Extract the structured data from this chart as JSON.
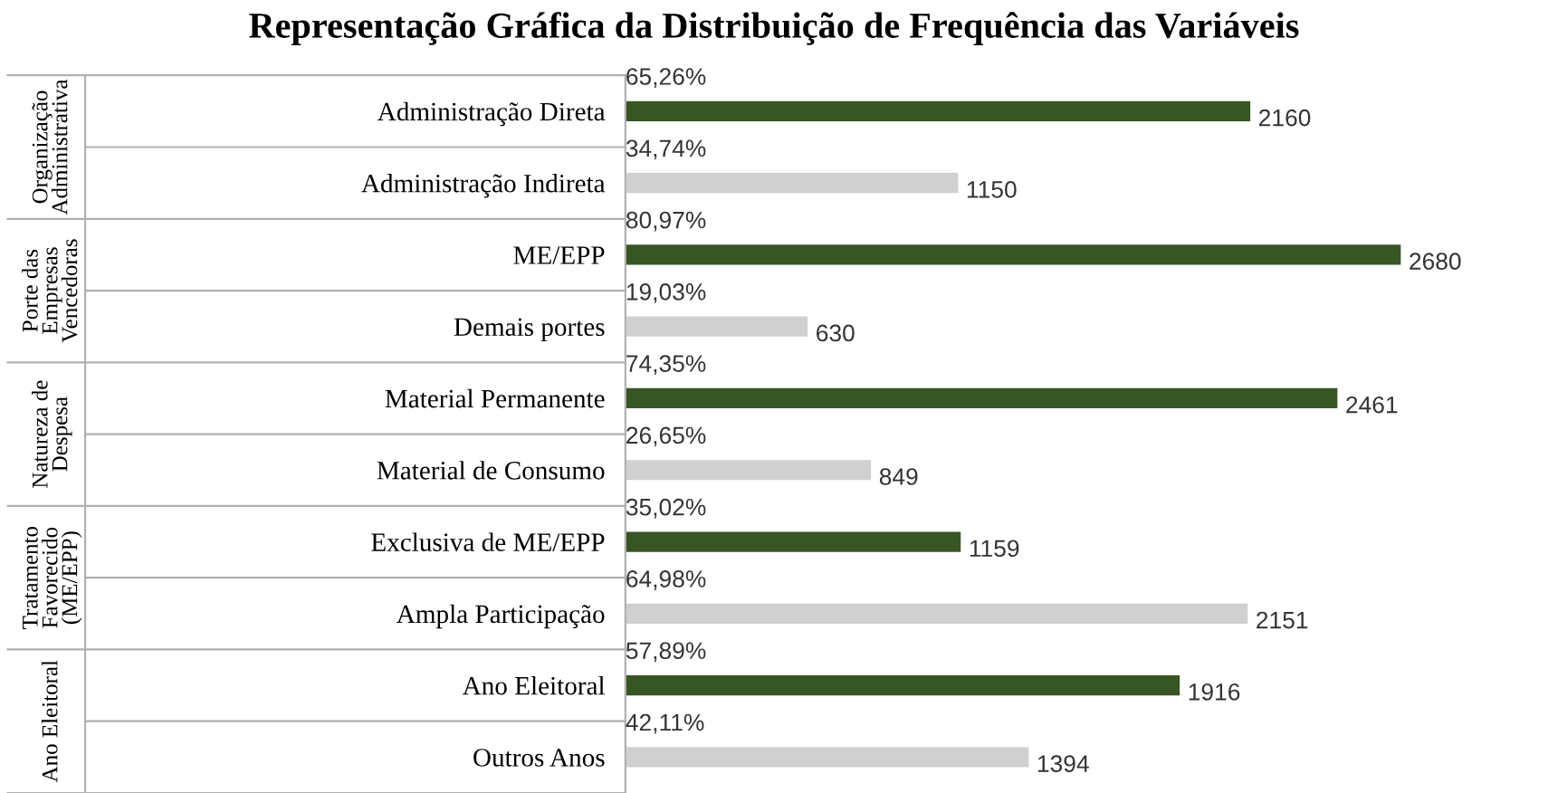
{
  "chart_data": {
    "type": "bar",
    "orientation": "horizontal",
    "title": "Representação Gráfica da Distribuição de Frequência das Variáveis",
    "categories": [
      "Administração Direta",
      "Administração Indireta",
      "ME/EPP",
      "Demais portes",
      "Material Permanente",
      "Material de Consumo",
      "Exclusiva de ME/EPP",
      "Ampla Participação",
      "Ano Eleitoral",
      "Outros Anos"
    ],
    "values": [
      2160,
      1150,
      2680,
      630,
      2461,
      849,
      1159,
      2151,
      1916,
      1394
    ],
    "colors": [
      "#375623",
      "#d0d0d0",
      "#375623",
      "#d0d0d0",
      "#375623",
      "#d0d0d0",
      "#375623",
      "#d0d0d0",
      "#375623",
      "#d0d0d0"
    ],
    "data_labels": true,
    "grid": false,
    "annotations": [
      "65,26%",
      "34,74%",
      "80,97%",
      "19,03%",
      "74,35%",
      "26,65%",
      "35,02%",
      "64,98%",
      "57,89%",
      "42,11%",
      "Organização\nAdministrativa",
      "Porte das\nEmpresas\nVencedoras",
      "Natureza de\nDespesa",
      "Tratamento\nFavorecido\n(ME/EPP)",
      "Ano Eleitoral"
    ]
  }
}
